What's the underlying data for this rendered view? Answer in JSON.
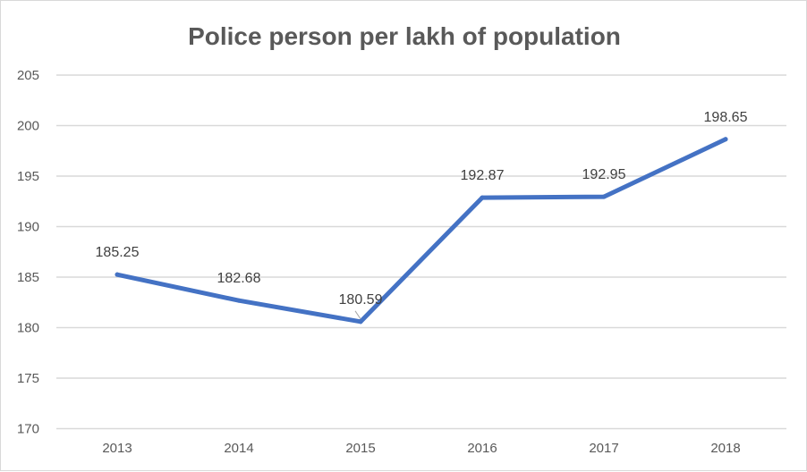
{
  "chart_data": {
    "type": "line",
    "title": "Police person per lakh of population",
    "xlabel": "",
    "ylabel": "",
    "categories": [
      "2013",
      "2014",
      "2015",
      "2016",
      "2017",
      "2018"
    ],
    "series": [
      {
        "name": "Police person per lakh of population",
        "values": [
          185.25,
          182.68,
          180.59,
          192.87,
          192.95,
          198.65
        ],
        "color": "#4472C4"
      }
    ],
    "data_labels": [
      "185.25",
      "182.68",
      "180.59",
      "192.87",
      "192.95",
      "198.65"
    ],
    "ylim": [
      170,
      205
    ],
    "yticks": [
      170,
      175,
      180,
      185,
      190,
      195,
      200,
      205
    ],
    "grid": true,
    "legend": "none"
  }
}
